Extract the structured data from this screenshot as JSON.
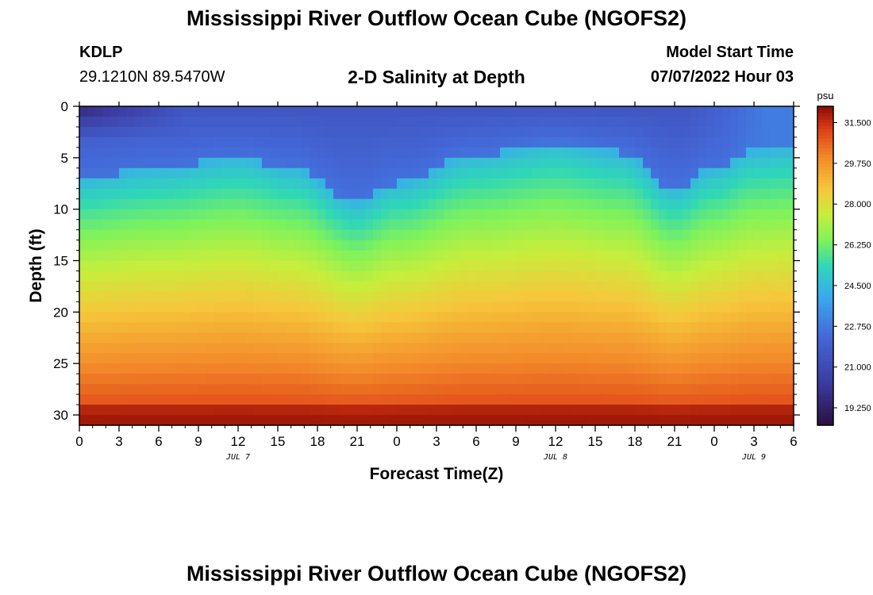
{
  "header": {
    "title": "Mississippi River Outflow Ocean Cube (NGOFS2)",
    "station_name": "KDLP",
    "coordinates": "29.1210N  89.5470W",
    "subtitle": "2-D Salinity at Depth",
    "model_start_label": "Model Start Time",
    "model_start_value": "07/07/2022 Hour 03"
  },
  "footer": {
    "title": "Mississippi River Outflow Ocean Cube (NGOFS2)"
  },
  "chart_data": {
    "type": "heatmap",
    "xlabel": "Forecast Time(Z)",
    "ylabel": "Depth (ft)",
    "x_unit": "forecast hours from 07/07/2022 00Z",
    "xlim": [
      0,
      54
    ],
    "ylim": [
      31,
      0
    ],
    "x_ticks": [
      0,
      3,
      6,
      9,
      12,
      15,
      18,
      21,
      24,
      27,
      30,
      33,
      36,
      39,
      42,
      45,
      48,
      51,
      54
    ],
    "x_tick_labels": [
      "0",
      "3",
      "6",
      "9",
      "12",
      "15",
      "18",
      "21",
      "0",
      "3",
      "6",
      "9",
      "12",
      "15",
      "18",
      "21",
      "0",
      "3",
      "6"
    ],
    "y_ticks": [
      0,
      5,
      10,
      15,
      20,
      25,
      30
    ],
    "y_tick_labels": [
      "0",
      "5",
      "10",
      "15",
      "20",
      "25",
      "30"
    ],
    "date_labels": [
      {
        "x": 12,
        "text": "JUL 7"
      },
      {
        "x": 36,
        "text": "JUL 8"
      },
      {
        "x": 51,
        "text": "JUL 9"
      }
    ],
    "colorbar": {
      "unit": "psu",
      "min": 18.5,
      "max": 32.2,
      "ticks": [
        19.25,
        21.0,
        22.75,
        24.5,
        26.25,
        28.0,
        29.75,
        31.5
      ],
      "tick_labels": [
        "19.250",
        "21.000",
        "22.750",
        "24.500",
        "26.250",
        "28.000",
        "29.750",
        "31.500"
      ]
    },
    "salinity_min_psu": 18.5,
    "salinity_max_psu": 32.2,
    "interface_depth_ft": [
      {
        "x": 0,
        "depth": 8.5
      },
      {
        "x": 6,
        "depth": 7.5
      },
      {
        "x": 12,
        "depth": 6.5
      },
      {
        "x": 16,
        "depth": 7.5
      },
      {
        "x": 21,
        "depth": 10.8
      },
      {
        "x": 24,
        "depth": 9.0
      },
      {
        "x": 30,
        "depth": 6.2
      },
      {
        "x": 36,
        "depth": 5.0
      },
      {
        "x": 41,
        "depth": 6.0
      },
      {
        "x": 45,
        "depth": 9.5
      },
      {
        "x": 48,
        "depth": 7.5
      },
      {
        "x": 51,
        "depth": 5.8
      },
      {
        "x": 54,
        "depth": 5.5
      }
    ]
  }
}
